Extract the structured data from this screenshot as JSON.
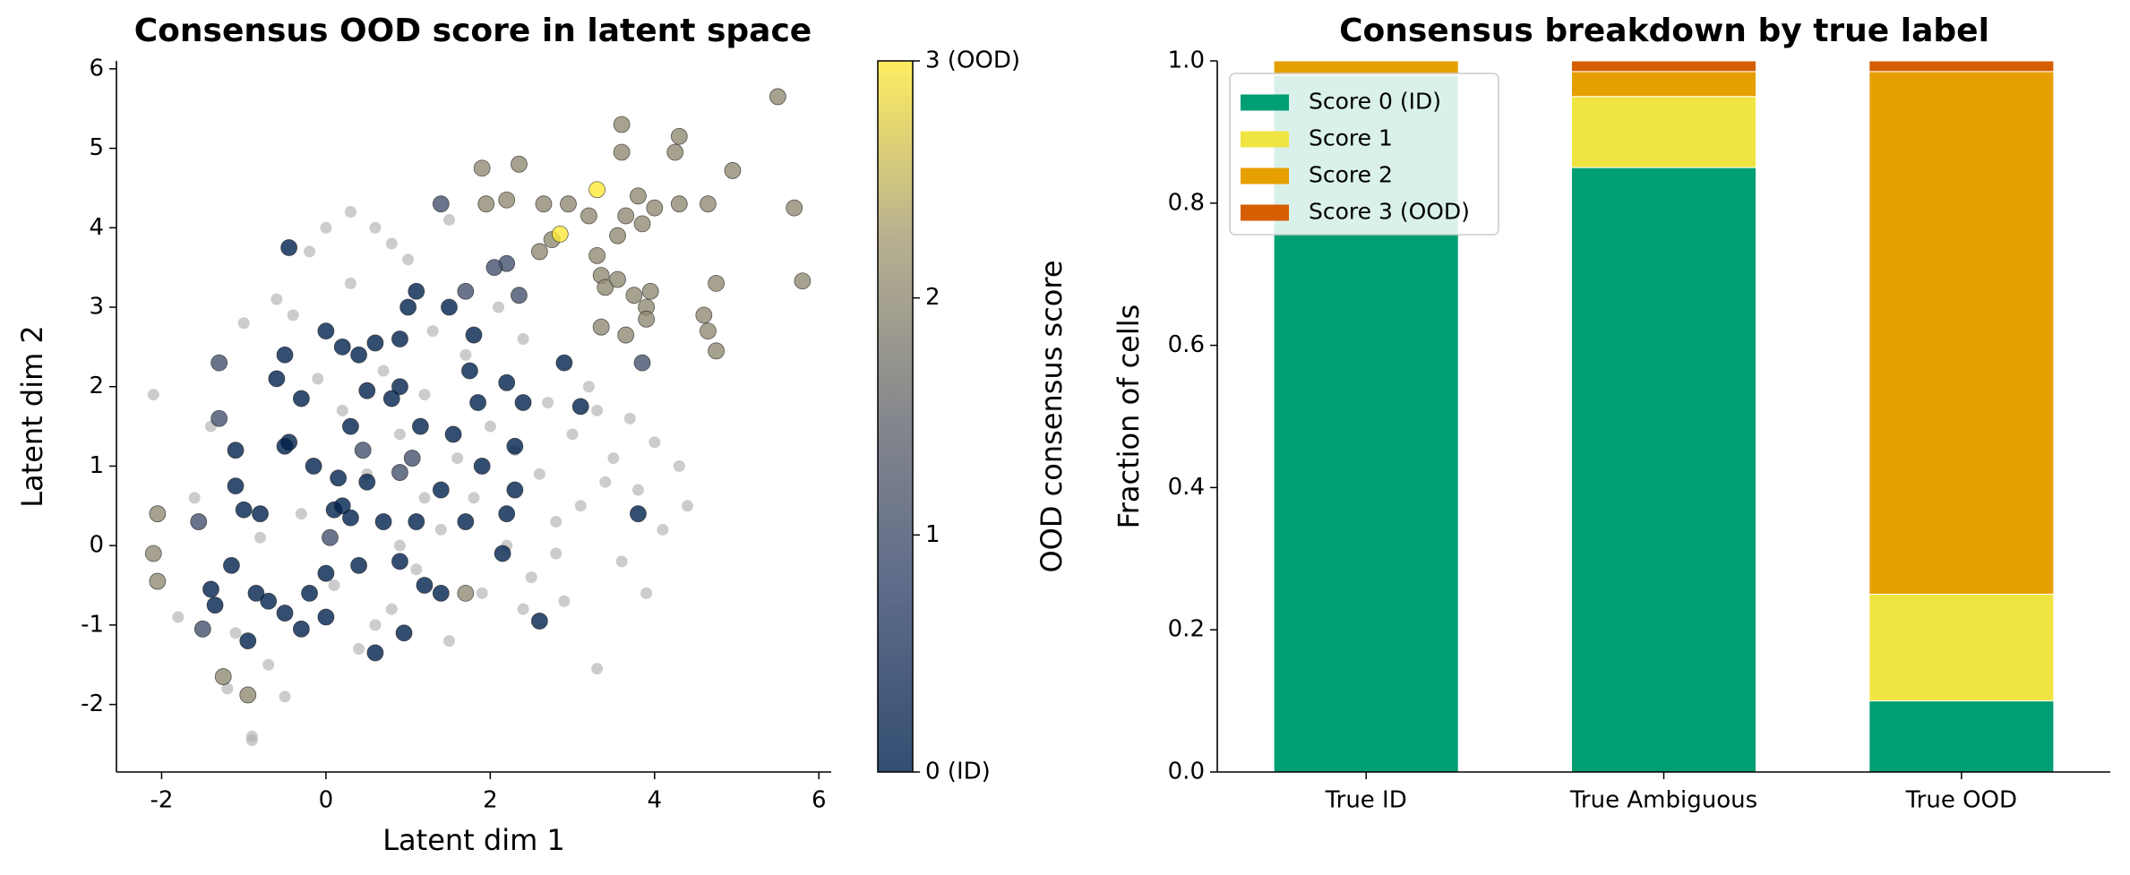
{
  "chart_data": [
    {
      "type": "scatter",
      "title": "Consensus OOD score in latent space",
      "xlabel": "Latent dim 1",
      "ylabel": "Latent dim 2",
      "xlim": [
        -2.55,
        6.15
      ],
      "xticks": [
        -2,
        0,
        2,
        4,
        6
      ],
      "ylim": [
        -2.85,
        6.1
      ],
      "yticks": [
        -2,
        -1,
        0,
        1,
        2,
        3,
        4,
        5,
        6
      ],
      "background": {
        "color": "#b0b0b0",
        "x": [
          -2.1,
          -1.8,
          -1.6,
          -1.4,
          -1.2,
          -1.0,
          -0.9,
          -0.8,
          -0.7,
          -0.6,
          -0.5,
          -0.3,
          -0.2,
          -0.1,
          0.0,
          0.1,
          0.2,
          0.3,
          0.4,
          0.5,
          0.6,
          0.7,
          0.8,
          0.9,
          1.0,
          1.1,
          1.2,
          1.3,
          1.4,
          1.5,
          1.6,
          1.7,
          1.8,
          1.9,
          2.0,
          2.1,
          2.2,
          2.3,
          2.4,
          2.5,
          2.6,
          2.7,
          2.8,
          2.9,
          3.0,
          3.1,
          3.2,
          3.3,
          3.4,
          3.5,
          3.6,
          3.7,
          3.8,
          3.9,
          4.0,
          4.1,
          4.3,
          4.4,
          -0.9,
          0.3,
          0.8,
          1.5,
          2.4,
          0.6,
          -0.4,
          3.3,
          1.2,
          2.8,
          0.9,
          -1.1
        ],
        "y": [
          1.9,
          -0.9,
          0.6,
          1.5,
          -1.8,
          2.8,
          -2.45,
          0.1,
          -1.5,
          3.1,
          -1.9,
          0.4,
          3.7,
          2.1,
          4.0,
          -0.5,
          1.7,
          3.3,
          -1.3,
          0.9,
          4.0,
          2.2,
          -0.8,
          1.4,
          3.6,
          -0.3,
          1.9,
          2.7,
          0.2,
          -1.2,
          1.1,
          2.4,
          0.6,
          -0.6,
          1.5,
          3.0,
          0.0,
          1.2,
          2.6,
          -0.4,
          0.9,
          1.8,
          0.3,
          -0.7,
          1.4,
          0.5,
          2.0,
          -1.55,
          0.8,
          1.1,
          -0.2,
          1.6,
          0.7,
          -0.6,
          1.3,
          0.2,
          1.0,
          0.5,
          -2.4,
          4.2,
          3.8,
          4.1,
          -0.8,
          -1.0,
          2.9,
          1.7,
          0.6,
          -0.1,
          0.0,
          -1.1
        ]
      },
      "x": [
        1.9,
        2.35,
        2.2,
        2.65,
        2.95,
        1.95,
        3.2,
        3.6,
        3.6,
        4.3,
        4.25,
        3.8,
        3.65,
        3.85,
        3.55,
        4.0,
        4.3,
        4.65,
        4.95,
        5.5,
        5.7,
        5.8,
        3.3,
        3.35,
        3.4,
        3.55,
        3.75,
        3.9,
        3.95,
        3.9,
        4.75,
        4.6,
        4.65,
        4.75,
        3.35,
        3.65,
        2.6,
        2.75,
        -2.05,
        -2.1,
        -2.05,
        -1.25,
        -0.95,
        1.7,
        3.3,
        2.85,
        1.4,
        2.2,
        2.05,
        2.35,
        3.85,
        -1.3,
        -1.55,
        -1.5,
        1.05,
        0.9,
        0.45,
        1.7,
        -1.3,
        0.05,
        -0.45,
        -0.5,
        -0.6,
        -0.45,
        -0.5,
        -0.3,
        0.0,
        0.2,
        0.4,
        0.6,
        0.9,
        0.9,
        0.8,
        1.1,
        1.0,
        1.5,
        1.8,
        1.75,
        1.85,
        2.2,
        2.4,
        3.1,
        2.9,
        2.3,
        2.3,
        2.2,
        2.6,
        3.8,
        2.15,
        -1.1,
        -1.1,
        -1.0,
        -0.8,
        -0.85,
        -1.4,
        -1.35,
        -1.15,
        -0.95,
        -0.7,
        -0.5,
        -0.3,
        -0.2,
        0.0,
        0.0,
        0.1,
        0.2,
        0.3,
        0.4,
        0.5,
        0.7,
        0.9,
        1.1,
        1.2,
        0.6,
        0.95,
        1.4,
        1.7,
        -0.15,
        0.3,
        0.5,
        1.15,
        1.55,
        1.9,
        1.4,
        0.15
      ],
      "y": [
        4.75,
        4.8,
        4.35,
        4.3,
        4.3,
        4.3,
        4.15,
        5.3,
        4.95,
        5.15,
        4.95,
        4.4,
        4.15,
        4.05,
        3.9,
        4.25,
        4.3,
        4.3,
        4.72,
        5.65,
        4.25,
        3.33,
        3.65,
        3.4,
        3.25,
        3.35,
        3.15,
        3.0,
        3.2,
        2.85,
        3.3,
        2.9,
        2.7,
        2.45,
        2.75,
        2.65,
        3.7,
        3.85,
        0.4,
        -0.1,
        -0.45,
        -1.65,
        -1.88,
        -0.6,
        4.48,
        3.92,
        4.3,
        3.55,
        3.5,
        3.15,
        2.3,
        1.6,
        0.3,
        -1.05,
        1.1,
        0.92,
        1.2,
        3.2,
        2.3,
        0.1,
        3.75,
        2.4,
        2.1,
        1.3,
        1.25,
        1.85,
        2.7,
        2.5,
        2.4,
        2.55,
        2.6,
        2.0,
        1.85,
        3.2,
        3.0,
        3.0,
        2.65,
        2.2,
        1.8,
        2.05,
        1.8,
        1.75,
        2.3,
        1.25,
        0.7,
        0.4,
        -0.95,
        0.4,
        -0.1,
        1.2,
        0.75,
        0.45,
        0.4,
        -0.6,
        -0.55,
        -0.75,
        -0.25,
        -1.2,
        -0.7,
        -0.85,
        -1.05,
        -0.6,
        -0.9,
        -0.35,
        0.45,
        0.5,
        0.35,
        -0.25,
        0.8,
        0.3,
        -0.2,
        0.3,
        -0.5,
        -1.35,
        -1.1,
        0.7,
        0.3,
        1.0,
        1.5,
        1.95,
        1.5,
        1.4,
        1.0,
        -0.6,
        0.85
      ],
      "values": [
        2,
        2,
        2,
        2,
        2,
        2,
        2,
        2,
        2,
        2,
        2,
        2,
        2,
        2,
        2,
        2,
        2,
        2,
        2,
        2,
        2,
        2,
        2,
        2,
        2,
        2,
        2,
        2,
        2,
        2,
        2,
        2,
        2,
        2,
        2,
        2,
        2,
        2,
        2,
        2,
        2,
        2,
        2,
        2,
        3,
        3,
        1,
        1,
        1,
        1,
        1,
        1,
        1,
        1,
        1,
        1,
        1,
        1,
        1,
        1,
        0,
        0,
        0,
        0,
        0,
        0,
        0,
        0,
        0,
        0,
        0,
        0,
        0,
        0,
        0,
        0,
        0,
        0,
        0,
        0,
        0,
        0,
        0,
        0,
        0,
        0,
        0,
        0,
        0,
        0,
        0,
        0,
        0,
        0,
        0,
        0,
        0,
        0,
        0,
        0,
        0,
        0,
        0,
        0,
        0,
        0,
        0,
        0,
        0,
        0,
        0,
        0,
        0,
        0,
        0,
        0,
        0,
        0,
        0,
        0,
        0,
        0,
        0,
        0,
        0
      ],
      "colorbar": {
        "label": "OOD consensus score",
        "lim": [
          0,
          3
        ],
        "ticks": [
          {
            "value": 0,
            "label": "0 (ID)"
          },
          1,
          2,
          {
            "value": 3,
            "label": "3 (OOD)"
          }
        ],
        "colormap": [
          "#00224e",
          "#35456c",
          "#666970",
          "#a59c74",
          "#fee838"
        ]
      }
    },
    {
      "type": "stacked_bar",
      "title": "Consensus breakdown by true label",
      "ylabel": "Fraction of cells",
      "categories": [
        "True ID",
        "True Ambiguous",
        "True OOD"
      ],
      "ylim": [
        0,
        1
      ],
      "yticks": [
        {
          "value": 0,
          "label": "0.0"
        },
        0.2,
        0.4,
        0.6,
        0.8,
        {
          "value": 1,
          "label": "1.0"
        }
      ],
      "legend": "upper left",
      "series": [
        {
          "name": "Score 0 (ID)",
          "color": "#009e73",
          "values": [
            0.98,
            0.85,
            0.1
          ]
        },
        {
          "name": "Score 1",
          "color": "#f0e442",
          "values": [
            0.0,
            0.1,
            0.15
          ]
        },
        {
          "name": "Score 2",
          "color": "#e69f00",
          "values": [
            0.02,
            0.035,
            0.735
          ]
        },
        {
          "name": "Score 3 (OOD)",
          "color": "#d55e00",
          "values": [
            0.0,
            0.015,
            0.015
          ]
        }
      ]
    }
  ]
}
